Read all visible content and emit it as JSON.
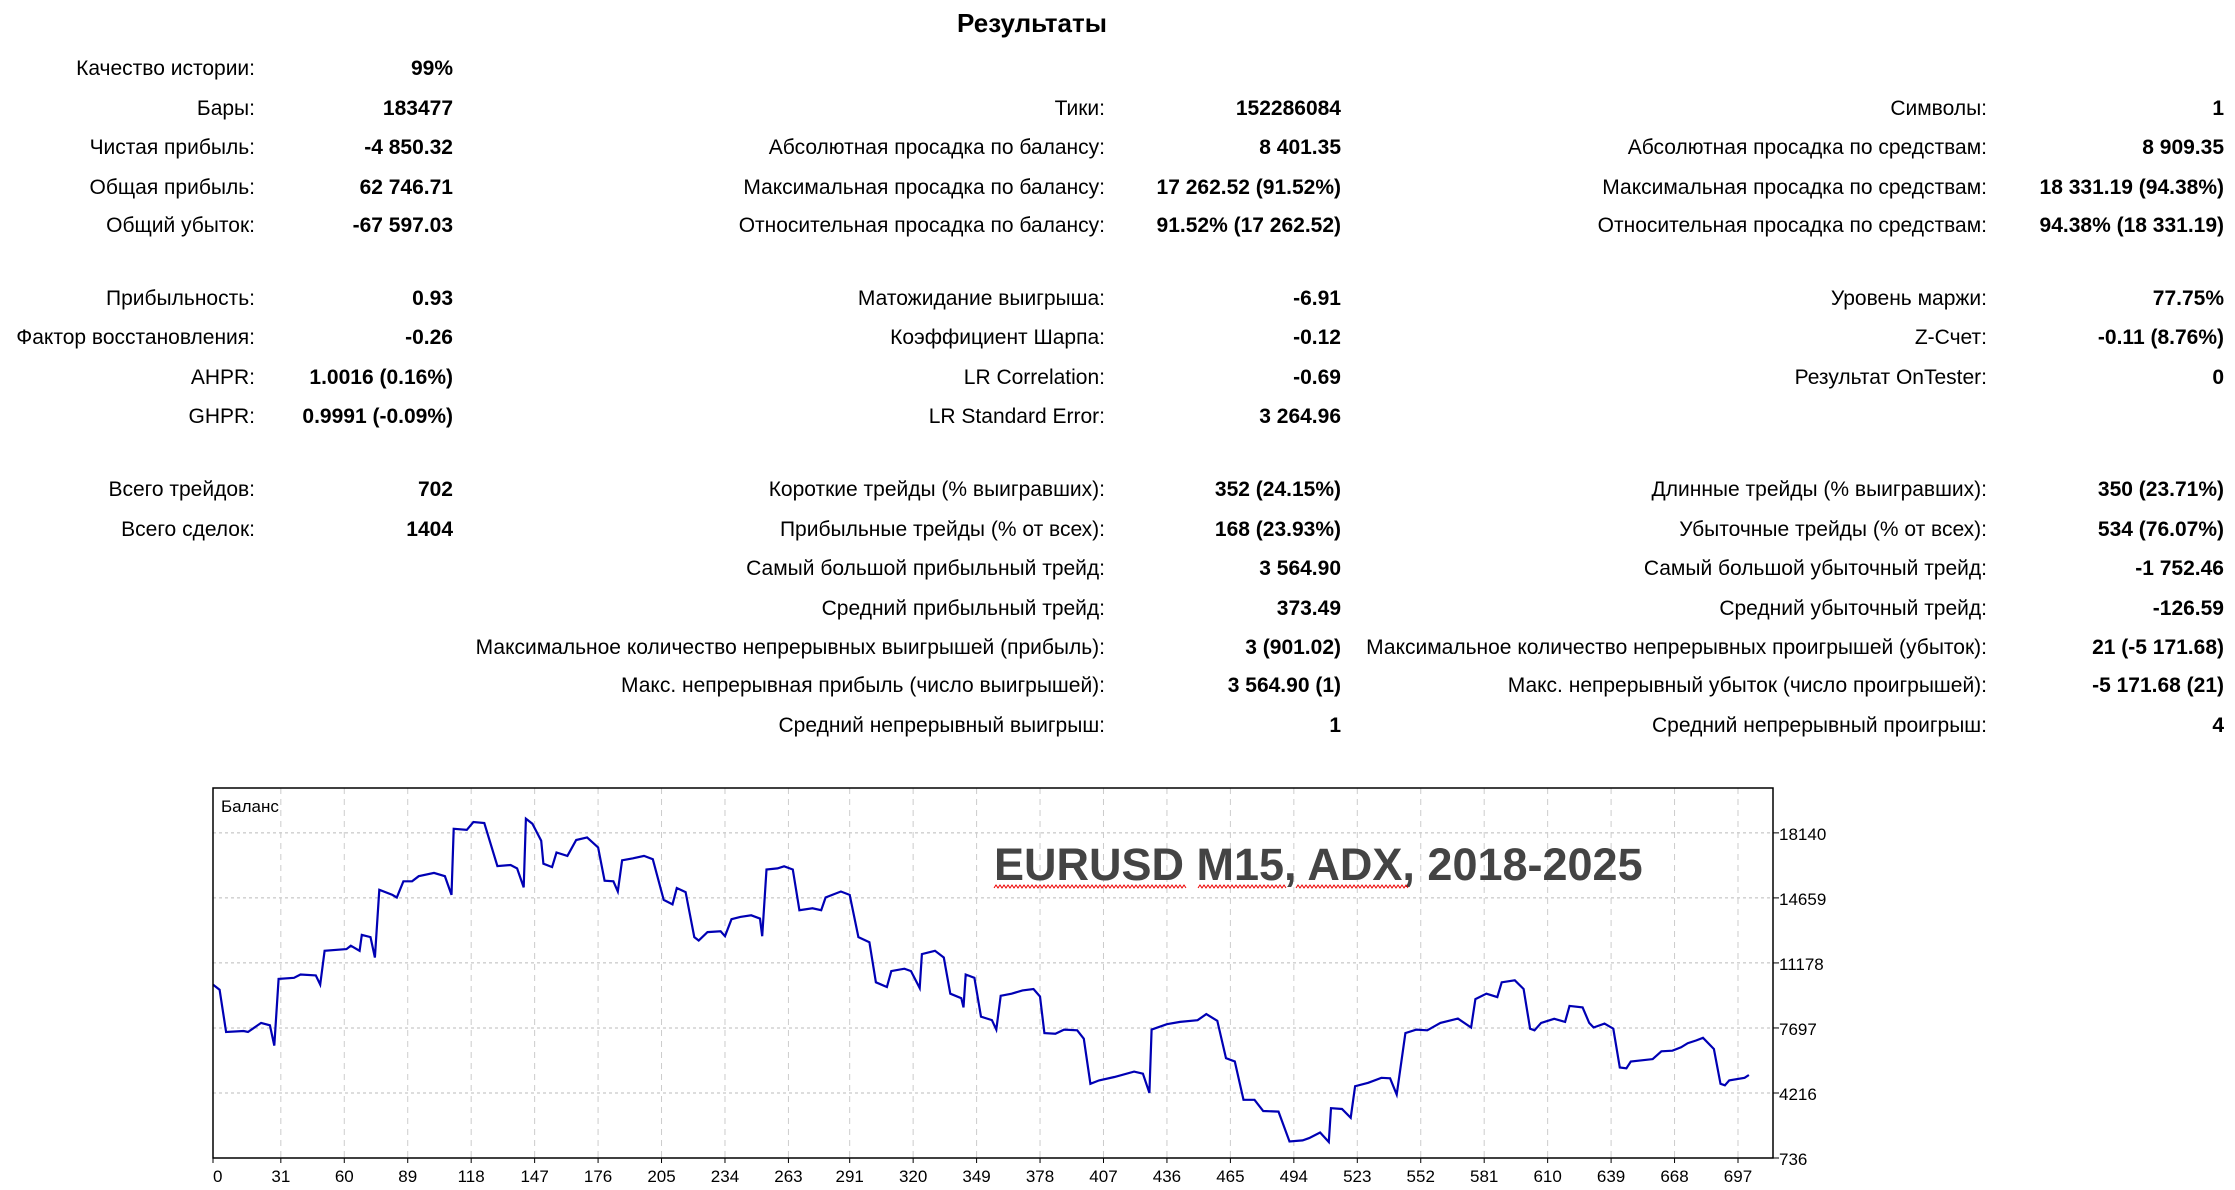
{
  "title": "Результаты",
  "stats": [
    {
      "row": 0,
      "col": 0,
      "label": "Качество истории:",
      "value": "99%"
    },
    {
      "row": 1,
      "col": 0,
      "label": "Бары:",
      "value": "183477"
    },
    {
      "row": 1,
      "col": 1,
      "label": "Тики:",
      "value": "152286084"
    },
    {
      "row": 1,
      "col": 2,
      "label": "Символы:",
      "value": "1"
    },
    {
      "row": 2,
      "col": 0,
      "label": "Чистая прибыль:",
      "value": "-4 850.32"
    },
    {
      "row": 2,
      "col": 1,
      "label": "Абсолютная просадка по балансу:",
      "value": "8 401.35"
    },
    {
      "row": 2,
      "col": 2,
      "label": "Абсолютная просадка по средствам:",
      "value": "8 909.35"
    },
    {
      "row": 3,
      "col": 0,
      "label": "Общая прибыль:",
      "value": "62 746.71"
    },
    {
      "row": 3,
      "col": 1,
      "label": "Максимальная просадка по балансу:",
      "value": "17 262.52 (91.52%)"
    },
    {
      "row": 3,
      "col": 2,
      "label": "Максимальная просадка по средствам:",
      "value": "18 331.19 (94.38%)"
    },
    {
      "row": 4,
      "col": 0,
      "label": "Общий убыток:",
      "value": "-67 597.03"
    },
    {
      "row": 4,
      "col": 1,
      "label": "Относительная просадка по балансу:",
      "value": "91.52% (17 262.52)"
    },
    {
      "row": 4,
      "col": 2,
      "label": "Относительная просадка по средствам:",
      "value": "94.38% (18 331.19)"
    },
    {
      "row": 5,
      "col": 0,
      "label": "Прибыльность:",
      "value": "0.93"
    },
    {
      "row": 5,
      "col": 1,
      "label": "Матожидание выигрыша:",
      "value": "-6.91"
    },
    {
      "row": 5,
      "col": 2,
      "label": "Уровень маржи:",
      "value": "77.75%"
    },
    {
      "row": 6,
      "col": 0,
      "label": "Фактор восстановления:",
      "value": "-0.26"
    },
    {
      "row": 6,
      "col": 1,
      "label": "Коэффициент Шарпа:",
      "value": "-0.12"
    },
    {
      "row": 6,
      "col": 2,
      "label": "Z-Счет:",
      "value": "-0.11 (8.76%)"
    },
    {
      "row": 7,
      "col": 0,
      "label": "AHPR:",
      "value": "1.0016 (0.16%)"
    },
    {
      "row": 7,
      "col": 1,
      "label": "LR Correlation:",
      "value": "-0.69"
    },
    {
      "row": 7,
      "col": 2,
      "label": "Результат OnTester:",
      "value": "0"
    },
    {
      "row": 8,
      "col": 0,
      "label": "GHPR:",
      "value": "0.9991 (-0.09%)"
    },
    {
      "row": 8,
      "col": 1,
      "label": "LR Standard Error:",
      "value": "3 264.96"
    },
    {
      "row": 9,
      "col": 0,
      "label": "Всего трейдов:",
      "value": "702"
    },
    {
      "row": 9,
      "col": 1,
      "label": "Короткие трейды (% выигравших):",
      "value": "352 (24.15%)"
    },
    {
      "row": 9,
      "col": 2,
      "label": "Длинные трейды (% выигравших):",
      "value": "350 (23.71%)"
    },
    {
      "row": 10,
      "col": 0,
      "label": "Всего сделок:",
      "value": "1404"
    },
    {
      "row": 10,
      "col": 1,
      "label": "Прибыльные трейды (% от всех):",
      "value": "168 (23.93%)"
    },
    {
      "row": 10,
      "col": 2,
      "label": "Убыточные трейды (% от всех):",
      "value": "534 (76.07%)"
    },
    {
      "row": 11,
      "col": 1,
      "label": "Самый большой прибыльный трейд:",
      "value": "3 564.90"
    },
    {
      "row": 11,
      "col": 2,
      "label": "Самый большой убыточный трейд:",
      "value": "-1 752.46"
    },
    {
      "row": 12,
      "col": 1,
      "label": "Средний прибыльный трейд:",
      "value": "373.49"
    },
    {
      "row": 12,
      "col": 2,
      "label": "Средний убыточный трейд:",
      "value": "-126.59"
    },
    {
      "row": 13,
      "col": 1,
      "label": "Максимальное количество непрерывных выигрышей (прибыль):",
      "value": "3 (901.02)"
    },
    {
      "row": 13,
      "col": 2,
      "label": "Максимальное количество непрерывных проигрышей (убыток):",
      "value": "21 (-5 171.68)"
    },
    {
      "row": 14,
      "col": 1,
      "label": "Макс. непрерывная прибыль (число выигрышей):",
      "value": "3 564.90 (1)"
    },
    {
      "row": 14,
      "col": 2,
      "label": "Макс. непрерывный убыток (число проигрышей):",
      "value": "-5 171.68 (21)"
    },
    {
      "row": 15,
      "col": 1,
      "label": "Средний непрерывный выигрыш:",
      "value": "1"
    },
    {
      "row": 15,
      "col": 2,
      "label": "Средний непрерывный проигрыш:",
      "value": "4"
    }
  ],
  "chart_data": {
    "type": "line",
    "title": "Баланс",
    "annotation": "EURUSD M15, ADX, 2018-2025",
    "xlabel": "",
    "ylabel": "",
    "xlim": [
      0,
      713
    ],
    "ylim": [
      736,
      20542
    ],
    "grid": true,
    "y_ticks": [
      18140,
      14659,
      11178,
      7697,
      4216,
      736
    ],
    "x_ticks": [
      0,
      31,
      60,
      89,
      118,
      147,
      176,
      205,
      234,
      263,
      291,
      320,
      349,
      378,
      407,
      436,
      465,
      494,
      523,
      552,
      581,
      610,
      639,
      668,
      697
    ],
    "line_color": "#0000b4",
    "series": [
      {
        "name": "Баланс",
        "x": [
          0,
          3,
          6,
          14,
          16,
          22,
          26,
          28,
          30,
          37,
          40,
          47,
          49,
          51,
          61,
          63,
          67,
          68,
          72,
          74,
          76,
          82,
          84,
          87,
          91,
          94,
          101,
          106,
          109,
          110,
          116,
          119,
          124,
          130,
          136,
          139,
          142,
          143,
          146,
          150,
          151,
          155,
          157,
          162,
          166,
          171,
          176,
          179,
          183,
          185,
          187,
          192,
          197,
          201,
          206,
          210,
          212,
          216,
          220,
          222,
          226,
          232,
          234,
          237,
          241,
          246,
          250,
          251,
          253,
          258,
          261,
          265,
          268,
          274,
          278,
          280,
          283,
          287,
          291,
          295,
          300,
          303,
          308,
          310,
          316,
          319,
          323,
          324,
          330,
          334,
          337,
          342,
          343,
          344,
          348,
          351,
          356,
          358,
          360,
          365,
          370,
          375,
          378,
          380,
          385,
          389,
          395,
          398,
          401,
          405,
          412,
          421,
          425,
          428,
          429,
          436,
          442,
          450,
          454,
          459,
          463,
          467,
          471,
          476,
          480,
          487,
          492,
          498,
          501,
          506,
          510,
          511,
          516,
          520,
          522,
          528,
          534,
          538,
          541,
          545,
          550,
          555,
          561,
          569,
          575,
          577,
          582,
          587,
          589,
          595,
          599,
          602,
          604,
          607,
          613,
          618,
          620,
          626,
          629,
          631,
          636,
          640,
          643,
          646,
          648,
          658,
          662,
          667,
          671,
          674,
          678,
          681,
          686,
          689,
          691,
          693,
          700,
          702
        ],
        "y": [
          10018,
          9745,
          7480,
          7535,
          7480,
          7970,
          7840,
          6755,
          10325,
          10380,
          10560,
          10510,
          10020,
          11830,
          11920,
          12100,
          11830,
          12680,
          12560,
          11470,
          15090,
          14820,
          14680,
          15550,
          15550,
          15820,
          16000,
          15820,
          14820,
          18360,
          18300,
          18720,
          18670,
          16360,
          16420,
          16240,
          15220,
          18900,
          18630,
          17720,
          16490,
          16310,
          17090,
          16910,
          17760,
          17900,
          17360,
          15580,
          15550,
          15000,
          16670,
          16780,
          16910,
          16730,
          14550,
          14310,
          15190,
          14970,
          12560,
          12380,
          12830,
          12870,
          12610,
          13520,
          13640,
          13730,
          13550,
          12610,
          16180,
          16240,
          16350,
          16180,
          14000,
          14100,
          14000,
          14680,
          14820,
          15000,
          14820,
          12560,
          12290,
          10140,
          9890,
          10740,
          10870,
          10740,
          9830,
          11650,
          11830,
          11470,
          9530,
          9290,
          8800,
          10560,
          10380,
          8300,
          8120,
          7610,
          9420,
          9530,
          9710,
          9780,
          9380,
          7420,
          7390,
          7610,
          7570,
          7120,
          4710,
          4890,
          5070,
          5360,
          5250,
          4220,
          7610,
          7900,
          8020,
          8110,
          8440,
          8080,
          6080,
          5900,
          3850,
          3850,
          3250,
          3220,
          1620,
          1680,
          1800,
          2100,
          1590,
          3400,
          3360,
          2890,
          4580,
          4760,
          5030,
          5000,
          4130,
          7420,
          7610,
          7570,
          7970,
          8200,
          7720,
          9240,
          9530,
          9350,
          10140,
          10250,
          9780,
          7660,
          7570,
          7970,
          8190,
          8020,
          8880,
          8800,
          7970,
          7720,
          7930,
          7660,
          5580,
          5540,
          5900,
          6030,
          6450,
          6480,
          6660,
          6880,
          7030,
          7170,
          6570,
          4710,
          4630,
          4890,
          5030,
          5180
        ]
      }
    ]
  }
}
